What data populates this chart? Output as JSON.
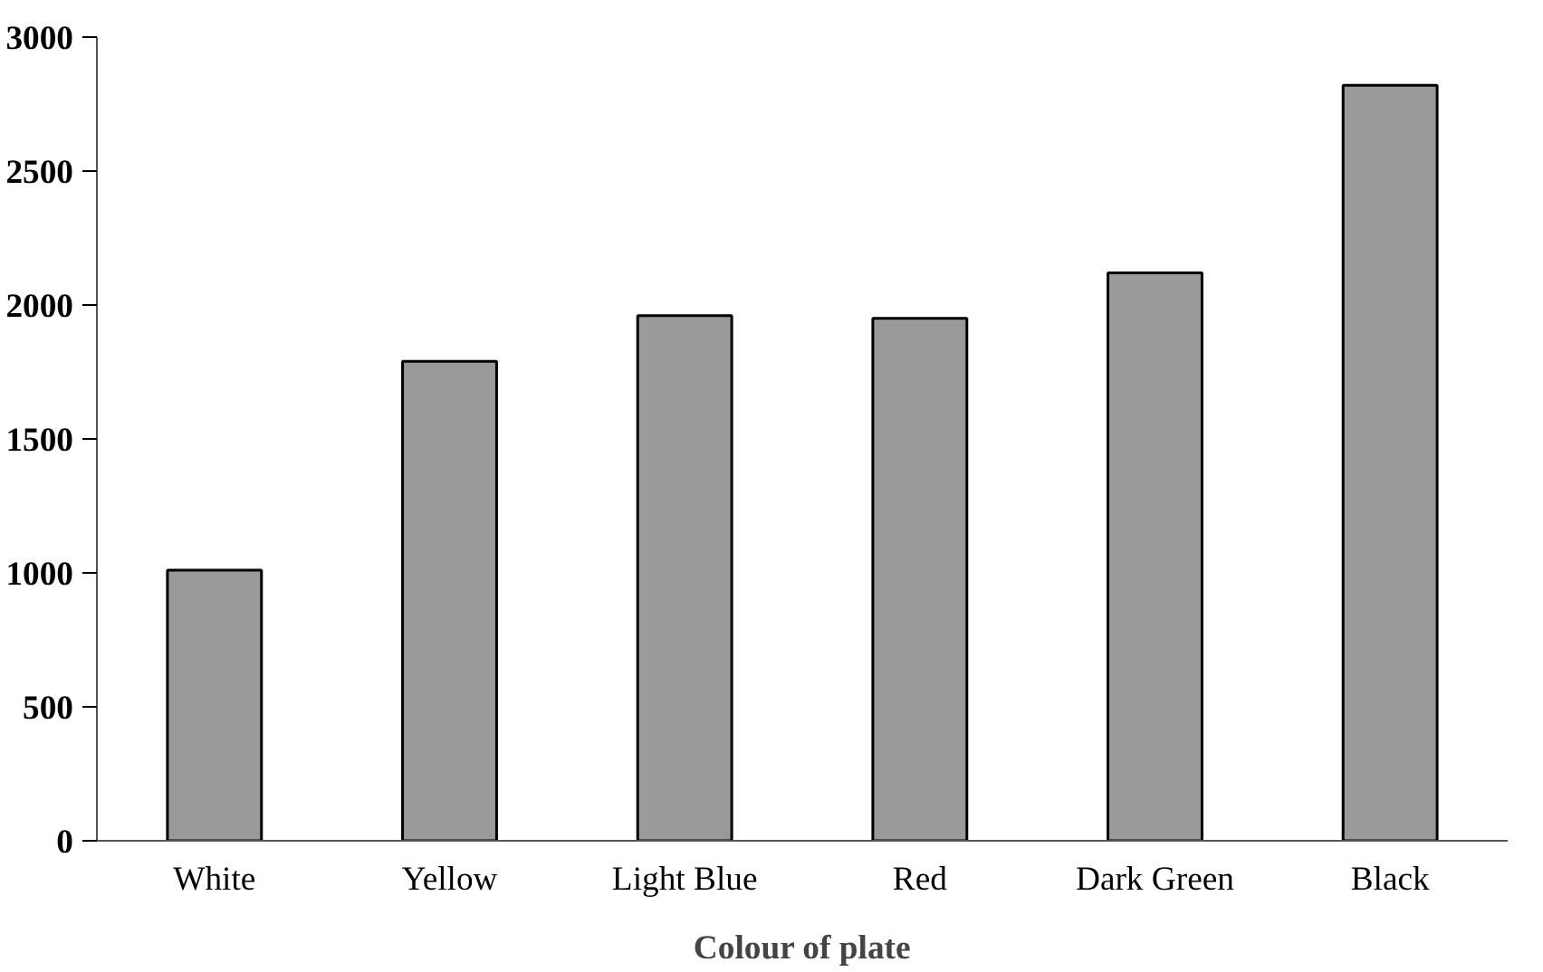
{
  "chart_data": {
    "type": "bar",
    "xlabel": "Colour of plate",
    "categories": [
      "White",
      "Yellow",
      "Light Blue",
      "Red",
      "Dark Green",
      "Black"
    ],
    "values": [
      1010,
      1790,
      1960,
      1950,
      2120,
      2820
    ],
    "color": "#9a9a9a",
    "ylim": [
      0,
      3000
    ],
    "yticks": [
      0,
      500,
      1000,
      1500,
      2000,
      2500,
      3000
    ]
  }
}
